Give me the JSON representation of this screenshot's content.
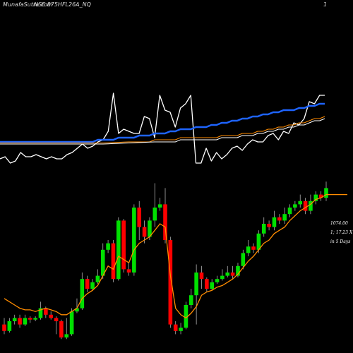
{
  "header": {
    "title": "MunafaSutra.com",
    "symbol": "NSE 875HFL26A_NQ",
    "page": "1"
  },
  "stats": {
    "price": "1074.00",
    "change": "1; 17.23 X",
    "period": "in 5 Days"
  },
  "colors": {
    "background": "#000000",
    "up_candle": "#00e000",
    "down_candle": "#ff0000",
    "wick": "#b0b0b0",
    "price_line": "#ffffff",
    "ema_short": "#ff8c00",
    "ema_long_1": "#1e64ff",
    "ema_long_2": "#ff8c00",
    "ema_long_3": "#ffffff"
  },
  "chart_data": [
    {
      "type": "line",
      "panel": "moving-averages",
      "x": [
        1,
        2,
        3,
        4,
        5,
        6,
        7,
        8,
        9,
        10,
        11,
        12,
        13,
        14,
        15,
        16,
        17,
        18,
        19,
        20,
        21,
        22,
        23,
        24,
        25,
        26,
        27,
        28,
        29,
        30,
        31,
        32,
        33,
        34,
        35,
        36,
        37,
        38,
        39,
        40,
        41,
        42,
        43,
        44,
        45,
        46,
        47,
        48,
        49,
        50,
        51,
        52,
        53,
        54,
        55,
        56,
        57,
        58,
        59,
        60,
        61,
        62,
        63,
        64
      ],
      "series": [
        {
          "role": "price",
          "values": [
            3,
            4,
            1,
            2,
            6,
            4,
            4,
            5,
            4,
            3,
            4,
            3,
            3,
            5,
            6,
            8,
            10,
            8,
            9,
            11,
            12,
            16,
            34,
            15,
            17,
            16,
            15,
            15,
            23,
            22,
            13,
            33,
            26,
            25,
            18,
            27,
            29,
            33,
            1,
            1,
            8,
            2,
            6,
            3,
            5,
            8,
            9,
            7,
            10,
            12,
            11,
            11,
            14,
            15,
            12,
            16,
            15,
            20,
            19,
            22,
            30,
            29,
            33,
            33
          ]
        },
        {
          "role": "ema",
          "color": "ema_long_1",
          "values": [
            11,
            11,
            11,
            11,
            11,
            11,
            11,
            11,
            11,
            11,
            11,
            11,
            11,
            11,
            11,
            11,
            11,
            11,
            11,
            12,
            12,
            12,
            12,
            13,
            13,
            13,
            13,
            14,
            14,
            14,
            15,
            15,
            15,
            16,
            16,
            17,
            17,
            17,
            18,
            18,
            18,
            19,
            19,
            20,
            20,
            21,
            21,
            22,
            22,
            23,
            23,
            24,
            24,
            25,
            25,
            26,
            26,
            26,
            27,
            27,
            28,
            28,
            29,
            29
          ]
        },
        {
          "role": "ema",
          "color": "ema_long_2",
          "values": [
            10.5,
            10.5,
            10.5,
            10.5,
            10.5,
            10.5,
            10.5,
            10.5,
            10.5,
            10.5,
            10.5,
            10.5,
            10.5,
            10.5,
            10.5,
            10.5,
            10.5,
            10.5,
            10.5,
            10.5,
            10.5,
            10.6,
            10.7,
            10.8,
            10.9,
            11,
            11,
            11,
            11,
            11,
            12,
            12,
            12,
            12,
            12,
            13,
            13,
            13,
            13,
            13,
            13,
            13,
            13,
            14,
            14,
            14,
            14,
            15,
            15,
            15,
            16,
            16,
            17,
            17,
            18,
            18,
            19,
            19,
            20,
            20,
            21,
            22,
            22,
            23
          ]
        },
        {
          "role": "ema",
          "color": "ema_long_3",
          "values": [
            10,
            10,
            10,
            10,
            10,
            10,
            10,
            10,
            10,
            10,
            10,
            10,
            10,
            10,
            10,
            10,
            10,
            10,
            10,
            10,
            10,
            10.1,
            10.2,
            10.3,
            10.4,
            10.5,
            10.6,
            10.7,
            10.8,
            10.9,
            11,
            11,
            11,
            11,
            11,
            12,
            12,
            12,
            12,
            12,
            12,
            12,
            12,
            13,
            13,
            13,
            13,
            14,
            14,
            14,
            15,
            15,
            16,
            16,
            17,
            17,
            18,
            18,
            19,
            19,
            20,
            21,
            21,
            22
          ]
        }
      ]
    },
    {
      "type": "candlestick",
      "panel": "price",
      "candles": [
        {
          "o": 8,
          "c": 4,
          "h": 12,
          "l": 2
        },
        {
          "o": 4,
          "c": 10,
          "h": 12,
          "l": 3
        },
        {
          "o": 10,
          "c": 12,
          "h": 14,
          "l": 8
        },
        {
          "o": 12,
          "c": 8,
          "h": 14,
          "l": 6
        },
        {
          "o": 8,
          "c": 12,
          "h": 14,
          "l": 7
        },
        {
          "o": 12,
          "c": 11,
          "h": 13,
          "l": 9
        },
        {
          "o": 11,
          "c": 12,
          "h": 13,
          "l": 10
        },
        {
          "o": 12,
          "c": 18,
          "h": 22,
          "l": 11
        },
        {
          "o": 18,
          "c": 14,
          "h": 19,
          "l": 12
        },
        {
          "o": 14,
          "c": 12,
          "h": 16,
          "l": 11
        },
        {
          "o": 12,
          "c": 10,
          "h": 13,
          "l": 2
        },
        {
          "o": 10,
          "c": 0,
          "h": 11,
          "l": -1
        },
        {
          "o": 0,
          "c": 2,
          "h": 12,
          "l": -1
        },
        {
          "o": 2,
          "c": 16,
          "h": 18,
          "l": 1
        },
        {
          "o": 16,
          "c": 18,
          "h": 24,
          "l": 15
        },
        {
          "o": 18,
          "c": 36,
          "h": 40,
          "l": 17
        },
        {
          "o": 36,
          "c": 30,
          "h": 38,
          "l": 28
        },
        {
          "o": 30,
          "c": 34,
          "h": 36,
          "l": 29
        },
        {
          "o": 34,
          "c": 38,
          "h": 42,
          "l": 33
        },
        {
          "o": 38,
          "c": 54,
          "h": 58,
          "l": 36
        },
        {
          "o": 54,
          "c": 58,
          "h": 60,
          "l": 52
        },
        {
          "o": 58,
          "c": 36,
          "h": 60,
          "l": 34
        },
        {
          "o": 36,
          "c": 72,
          "h": 74,
          "l": 35
        },
        {
          "o": 72,
          "c": 42,
          "h": 73,
          "l": 40
        },
        {
          "o": 42,
          "c": 40,
          "h": 46,
          "l": 38
        },
        {
          "o": 40,
          "c": 80,
          "h": 82,
          "l": 38
        },
        {
          "o": 80,
          "c": 68,
          "h": 84,
          "l": 60
        },
        {
          "o": 68,
          "c": 62,
          "h": 72,
          "l": 58
        },
        {
          "o": 62,
          "c": 72,
          "h": 74,
          "l": 60
        },
        {
          "o": 72,
          "c": 80,
          "h": 95,
          "l": 68
        },
        {
          "o": 80,
          "c": 82,
          "h": 86,
          "l": 78
        },
        {
          "o": 82,
          "c": 60,
          "h": 92,
          "l": 58
        },
        {
          "o": 60,
          "c": 8,
          "h": 62,
          "l": 6
        },
        {
          "o": 8,
          "c": 4,
          "h": 10,
          "l": 2
        },
        {
          "o": 4,
          "c": 6,
          "h": 9,
          "l": 2
        },
        {
          "o": 6,
          "c": 20,
          "h": 22,
          "l": 5
        },
        {
          "o": 20,
          "c": 26,
          "h": 30,
          "l": 18
        },
        {
          "o": 26,
          "c": 40,
          "h": 45,
          "l": 8
        },
        {
          "o": 40,
          "c": 36,
          "h": 44,
          "l": 30
        },
        {
          "o": 36,
          "c": 30,
          "h": 37,
          "l": 28
        },
        {
          "o": 30,
          "c": 34,
          "h": 36,
          "l": 29
        },
        {
          "o": 34,
          "c": 36,
          "h": 38,
          "l": 33
        },
        {
          "o": 36,
          "c": 38,
          "h": 42,
          "l": 35
        },
        {
          "o": 38,
          "c": 40,
          "h": 44,
          "l": 37
        },
        {
          "o": 40,
          "c": 38,
          "h": 44,
          "l": 36
        },
        {
          "o": 38,
          "c": 44,
          "h": 46,
          "l": 37
        },
        {
          "o": 44,
          "c": 52,
          "h": 54,
          "l": 42
        },
        {
          "o": 52,
          "c": 56,
          "h": 60,
          "l": 50
        },
        {
          "o": 56,
          "c": 54,
          "h": 58,
          "l": 52
        },
        {
          "o": 54,
          "c": 64,
          "h": 66,
          "l": 52
        },
        {
          "o": 64,
          "c": 70,
          "h": 74,
          "l": 62
        },
        {
          "o": 70,
          "c": 68,
          "h": 72,
          "l": 66
        },
        {
          "o": 68,
          "c": 74,
          "h": 78,
          "l": 66
        },
        {
          "o": 74,
          "c": 72,
          "h": 76,
          "l": 70
        },
        {
          "o": 72,
          "c": 76,
          "h": 80,
          "l": 70
        },
        {
          "o": 76,
          "c": 80,
          "h": 82,
          "l": 74
        },
        {
          "o": 80,
          "c": 82,
          "h": 84,
          "l": 78
        },
        {
          "o": 82,
          "c": 84,
          "h": 88,
          "l": 80
        },
        {
          "o": 84,
          "c": 78,
          "h": 86,
          "l": 76
        },
        {
          "o": 78,
          "c": 84,
          "h": 88,
          "l": 76
        },
        {
          "o": 84,
          "c": 88,
          "h": 90,
          "l": 82
        },
        {
          "o": 88,
          "c": 86,
          "h": 90,
          "l": 84
        },
        {
          "o": 86,
          "c": 92,
          "h": 96,
          "l": 84
        }
      ],
      "ema": {
        "color": "ema_short",
        "values": [
          24,
          22,
          20,
          18,
          17,
          17,
          16,
          17,
          18,
          17,
          16,
          14,
          14,
          16,
          18,
          24,
          27,
          29,
          32,
          38,
          44,
          42,
          50,
          48,
          46,
          54,
          58,
          60,
          62,
          66,
          70,
          68,
          38,
          18,
          14,
          12,
          15,
          19,
          26,
          28,
          29,
          31,
          32,
          34,
          36,
          39,
          43,
          47,
          50,
          54,
          58,
          60,
          64,
          66,
          68,
          72,
          75,
          78,
          80,
          82,
          85,
          86,
          88
        ]
      }
    }
  ]
}
